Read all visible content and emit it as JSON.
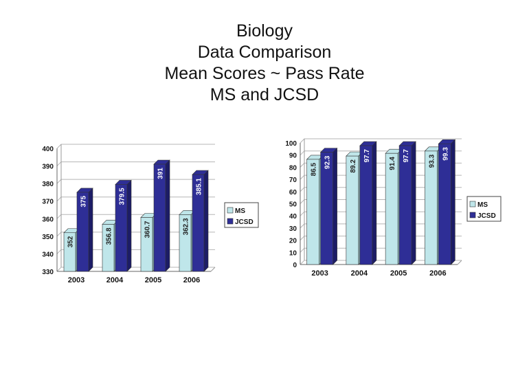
{
  "title_lines": [
    "Biology",
    "Data Comparison",
    "Mean Scores ~ Pass Rate",
    "MS and JCSD"
  ],
  "colors": {
    "ms": "#bfe6ea",
    "jcsd": "#2e2e96",
    "jcsd_dark": "#1c1c66",
    "ms_dark": "#8fb9bd"
  },
  "chart_data": [
    {
      "type": "bar",
      "title": "Mean Scores",
      "categories": [
        "2003",
        "2004",
        "2005",
        "2006"
      ],
      "series": [
        {
          "name": "MS",
          "values": [
            352,
            356.8,
            360.7,
            362.3
          ],
          "labels": [
            "352",
            "356.8",
            "360.7",
            "362.3"
          ]
        },
        {
          "name": "JCSD",
          "values": [
            375,
            379.5,
            391,
            385.1
          ],
          "labels": [
            "375",
            "379.5",
            "391",
            "385.1"
          ]
        }
      ],
      "ylim": [
        330,
        400
      ],
      "yticks": [
        "330",
        "340",
        "350",
        "360",
        "370",
        "380",
        "390",
        "400"
      ],
      "legend": [
        "MS",
        "JCSD"
      ]
    },
    {
      "type": "bar",
      "title": "Pass Rate",
      "categories": [
        "2003",
        "2004",
        "2005",
        "2006"
      ],
      "series": [
        {
          "name": "MS",
          "values": [
            86.5,
            89.2,
            91.4,
            93.3
          ],
          "labels": [
            "86.5",
            "89.2",
            "91.4",
            "93.3"
          ]
        },
        {
          "name": "JCSD",
          "values": [
            92.3,
            97.7,
            97.7,
            99.3
          ],
          "labels": [
            "92.3",
            "97.7",
            "97.7",
            "99.3"
          ]
        }
      ],
      "ylim": [
        0,
        100
      ],
      "yticks": [
        "0",
        "10",
        "20",
        "30",
        "40",
        "50",
        "60",
        "70",
        "80",
        "90",
        "100"
      ],
      "legend": [
        "MS",
        "JCSD"
      ]
    }
  ]
}
